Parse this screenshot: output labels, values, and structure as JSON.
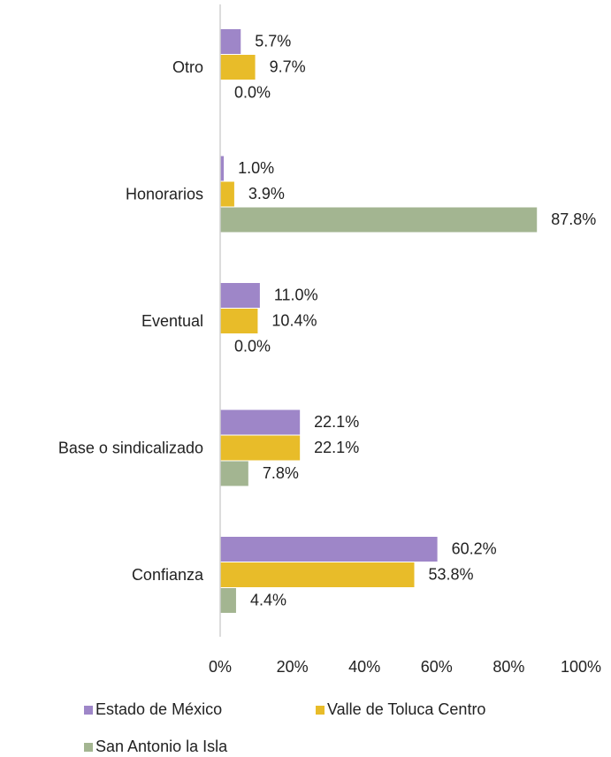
{
  "chart_data": {
    "type": "barh",
    "categories": [
      "Otro",
      "Honorarios",
      "Eventual",
      "Base o sindicalizado",
      "Confianza"
    ],
    "series": [
      {
        "name": "Estado de México",
        "color": "#9e86c8",
        "values": [
          5.7,
          1.0,
          11.0,
          22.1,
          60.2
        ],
        "value_labels": [
          "5.7%",
          "1.0%",
          "11.0%",
          "22.1%",
          "60.2%"
        ]
      },
      {
        "name": "Valle de Toluca Centro",
        "color": "#e8bc29",
        "values": [
          9.7,
          3.9,
          10.4,
          22.1,
          53.8
        ],
        "value_labels": [
          "9.7%",
          "3.9%",
          "10.4%",
          "22.1%",
          "53.8%"
        ]
      },
      {
        "name": "San Antonio la Isla",
        "color": "#a3b591",
        "values": [
          0.0,
          87.8,
          0.0,
          7.8,
          4.4
        ],
        "value_labels": [
          "0.0%",
          "87.8%",
          "0.0%",
          "7.8%",
          "4.4%"
        ]
      }
    ],
    "xlim": [
      0,
      100
    ],
    "xticks": [
      {
        "value": 0,
        "label": "0%"
      },
      {
        "value": 20,
        "label": "20%"
      },
      {
        "value": 40,
        "label": "40%"
      },
      {
        "value": 60,
        "label": "60%"
      },
      {
        "value": 80,
        "label": "80%"
      },
      {
        "value": 100,
        "label": "100%"
      }
    ],
    "grid": false,
    "legend": "bottom"
  }
}
